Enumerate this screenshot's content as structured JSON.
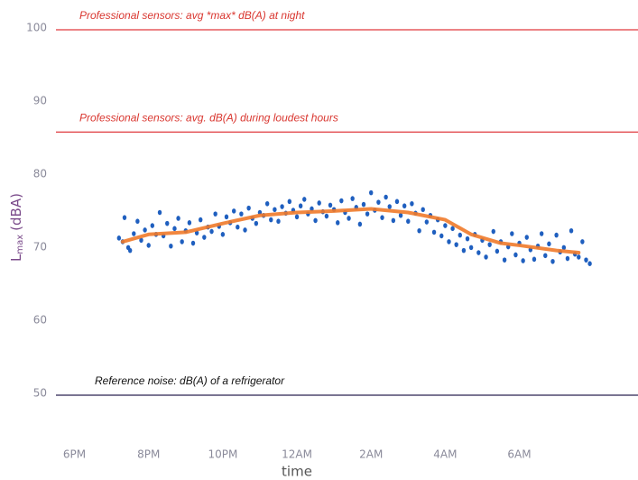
{
  "chart_data": {
    "type": "scatter",
    "ylabel": {
      "main": "L",
      "sub": "max",
      "unit": "(dBA)"
    },
    "xlabel": "time",
    "xlim": [
      17.5,
      33.2
    ],
    "xticks": [
      {
        "value": 18,
        "label": "6PM"
      },
      {
        "value": 20,
        "label": "8PM"
      },
      {
        "value": 22,
        "label": "10PM"
      },
      {
        "value": 24,
        "label": "12AM"
      },
      {
        "value": 26,
        "label": "2AM"
      },
      {
        "value": 28,
        "label": "4AM"
      },
      {
        "value": 30,
        "label": "6AM"
      }
    ],
    "ylim": [
      45,
      102
    ],
    "yticks": [
      50,
      60,
      70,
      80,
      90,
      100
    ],
    "grid": false,
    "reference_lines": [
      {
        "value": 100,
        "label": "Professional sensors: avg  *max* dB(A) at night",
        "color": "#e0393e",
        "text_color": "#d9362f"
      },
      {
        "value": 86,
        "label": "Professional sensors: avg. dB(A) during loudest hours",
        "color": "#e0393e",
        "text_color": "#d9362f"
      },
      {
        "value": 50,
        "label": "Reference noise: dB(A) of a refrigerator",
        "color": "#2b2350",
        "text_color": "#111111"
      }
    ],
    "series": [
      {
        "type": "scatter",
        "color": "#1f5fbf",
        "x": [
          19.2,
          19.3,
          19.35,
          19.45,
          19.5,
          19.6,
          19.7,
          19.8,
          19.9,
          20.0,
          20.1,
          20.2,
          20.3,
          20.4,
          20.5,
          20.6,
          20.7,
          20.8,
          20.9,
          21.0,
          21.1,
          21.2,
          21.3,
          21.4,
          21.5,
          21.6,
          21.7,
          21.8,
          21.9,
          22.0,
          22.1,
          22.2,
          22.3,
          22.4,
          22.5,
          22.6,
          22.7,
          22.8,
          22.9,
          23.0,
          23.1,
          23.2,
          23.3,
          23.4,
          23.5,
          23.6,
          23.7,
          23.8,
          23.9,
          24.0,
          24.1,
          24.2,
          24.3,
          24.4,
          24.5,
          24.6,
          24.7,
          24.8,
          24.9,
          25.0,
          25.1,
          25.2,
          25.3,
          25.4,
          25.5,
          25.6,
          25.7,
          25.8,
          25.9,
          26.0,
          26.1,
          26.2,
          26.3,
          26.4,
          26.5,
          26.6,
          26.7,
          26.8,
          26.9,
          27.0,
          27.1,
          27.2,
          27.3,
          27.4,
          27.5,
          27.6,
          27.7,
          27.8,
          27.9,
          28.0,
          28.1,
          28.2,
          28.3,
          28.4,
          28.5,
          28.6,
          28.7,
          28.8,
          28.9,
          29.0,
          29.1,
          29.2,
          29.3,
          29.4,
          29.5,
          29.6,
          29.7,
          29.8,
          29.9,
          30.0,
          30.1,
          30.2,
          30.3,
          30.4,
          30.5,
          30.6,
          30.7,
          30.8,
          30.9,
          31.0,
          31.1,
          31.2,
          31.3,
          31.4,
          31.5,
          31.6,
          31.7,
          31.8,
          31.9
        ],
        "values": [
          71.5,
          71,
          74.3,
          70.2,
          69.8,
          72.1,
          73.8,
          71.2,
          72.6,
          70.5,
          73.2,
          72.0,
          75.0,
          71.8,
          73.5,
          70.4,
          72.8,
          74.2,
          71.0,
          72.5,
          73.6,
          70.8,
          72.2,
          74.0,
          71.6,
          73.0,
          72.4,
          74.8,
          73.1,
          72.0,
          74.4,
          73.6,
          75.2,
          73.0,
          74.8,
          72.6,
          75.6,
          74.2,
          73.5,
          75.0,
          74.6,
          76.2,
          74.0,
          75.4,
          73.8,
          75.8,
          74.9,
          76.5,
          75.3,
          74.4,
          75.9,
          76.8,
          74.8,
          75.5,
          73.9,
          76.3,
          75.1,
          74.5,
          76.0,
          75.4,
          73.6,
          76.6,
          75.0,
          74.2,
          76.9,
          75.7,
          73.4,
          76.1,
          74.8,
          77.7,
          75.3,
          76.4,
          74.3,
          77.1,
          75.8,
          73.9,
          76.5,
          74.6,
          75.9,
          73.8,
          76.2,
          74.9,
          72.5,
          75.4,
          73.7,
          74.6,
          72.3,
          74.0,
          71.8,
          73.2,
          71.0,
          72.8,
          70.6,
          71.9,
          69.8,
          71.4,
          70.2,
          72.0,
          69.5,
          71.2,
          68.9,
          70.6,
          72.4,
          69.7,
          71.0,
          68.5,
          70.3,
          72.1,
          69.2,
          70.8,
          68.4,
          71.6,
          69.9,
          68.6,
          70.4,
          72.1,
          69.1,
          70.7,
          68.3,
          71.9,
          69.6,
          70.2,
          68.7,
          72.5,
          69.3,
          68.9,
          71.0,
          68.5,
          68.0
        ]
      },
      {
        "type": "line",
        "color": "#f07a2a",
        "x": [
          19.3,
          20,
          21,
          22,
          23,
          24,
          25,
          26,
          27,
          28,
          28.7,
          29.5,
          30,
          31,
          31.6
        ],
        "values": [
          71,
          72,
          72.3,
          73.5,
          74.6,
          75,
          75.2,
          75.5,
          75,
          74,
          72,
          70.8,
          70.5,
          69.8,
          69.5
        ]
      }
    ]
  }
}
